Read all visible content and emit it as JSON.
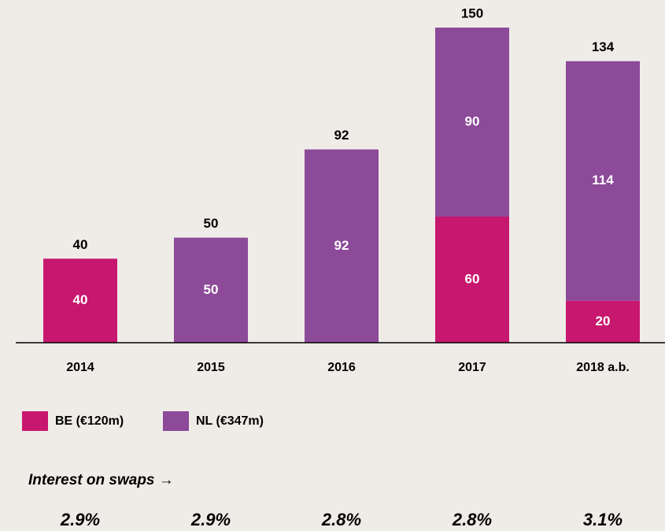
{
  "chart_data": {
    "type": "stacked_bar",
    "categories": [
      "2014",
      "2015",
      "2016",
      "2017",
      "2018 a.b."
    ],
    "series": [
      {
        "name": "BE (€120m)",
        "color": "#c8176f",
        "values": [
          40,
          null,
          null,
          60,
          20
        ]
      },
      {
        "name": "NL (€347m)",
        "color": "#8c4a98",
        "values": [
          null,
          50,
          92,
          90,
          114
        ]
      }
    ],
    "totals": [
      40,
      50,
      92,
      150,
      134
    ],
    "ylim": [
      0,
      150
    ],
    "interest_title": "Interest on swaps →",
    "interest_rates": [
      "2.9%",
      "2.9%",
      "2.8%",
      "2.8%",
      "3.1%"
    ]
  }
}
